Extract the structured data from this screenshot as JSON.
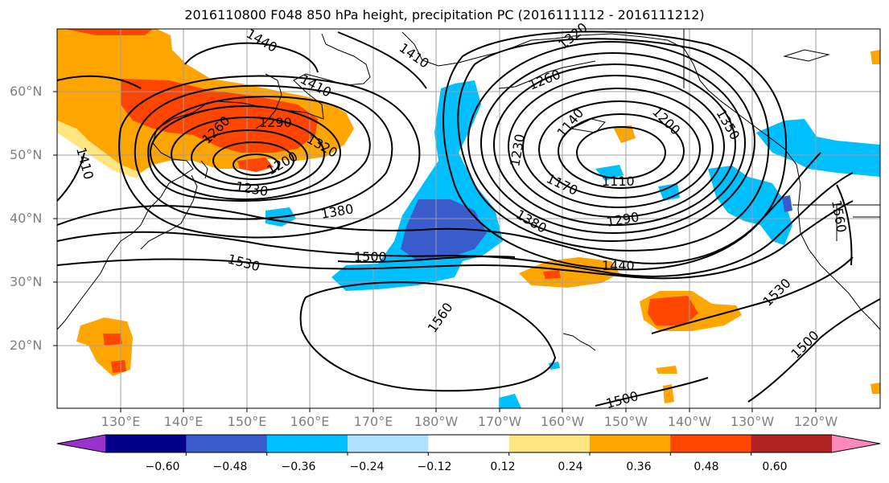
{
  "title": "2016110800 F048 850 hPa height, precipitation PC (2016111112 - 2016111212)",
  "latitude_labels": [
    "60°N",
    "50°N",
    "40°N",
    "30°N",
    "20°N"
  ],
  "longitude_labels": [
    "130°E",
    "140°E",
    "150°E",
    "160°E",
    "170°E",
    "180°W",
    "170°W",
    "160°W",
    "150°W",
    "140°W",
    "130°W",
    "120°W"
  ],
  "contour_labels": [
    "1440",
    "1410",
    "1260",
    "1290",
    "1320",
    "1200",
    "1230",
    "1380",
    "1500",
    "1530",
    "1410",
    "1410",
    "1320",
    "1260",
    "1140",
    "1200",
    "1350",
    "1230",
    "1170",
    "1110",
    "1380",
    "1290",
    "1440",
    "1560",
    "1530",
    "1500",
    "1500",
    "1560"
  ],
  "colorbar": {
    "tick_labels": [
      "−0.60",
      "−0.48",
      "−0.36",
      "−0.24",
      "−0.12",
      "0.12",
      "0.24",
      "0.36",
      "0.48",
      "0.60"
    ],
    "colors": [
      "#9932cc",
      "#00008b",
      "#3a5bcc",
      "#00bfff",
      "#b0e0ff",
      "#ffffff",
      "#ffe680",
      "#ffa500",
      "#ff4500",
      "#b22222",
      "#ff88bb"
    ]
  },
  "colors": {
    "contour": "#000000",
    "coast": "#000000",
    "grid": "#a0a0a0",
    "tick_text": "#808080"
  }
}
